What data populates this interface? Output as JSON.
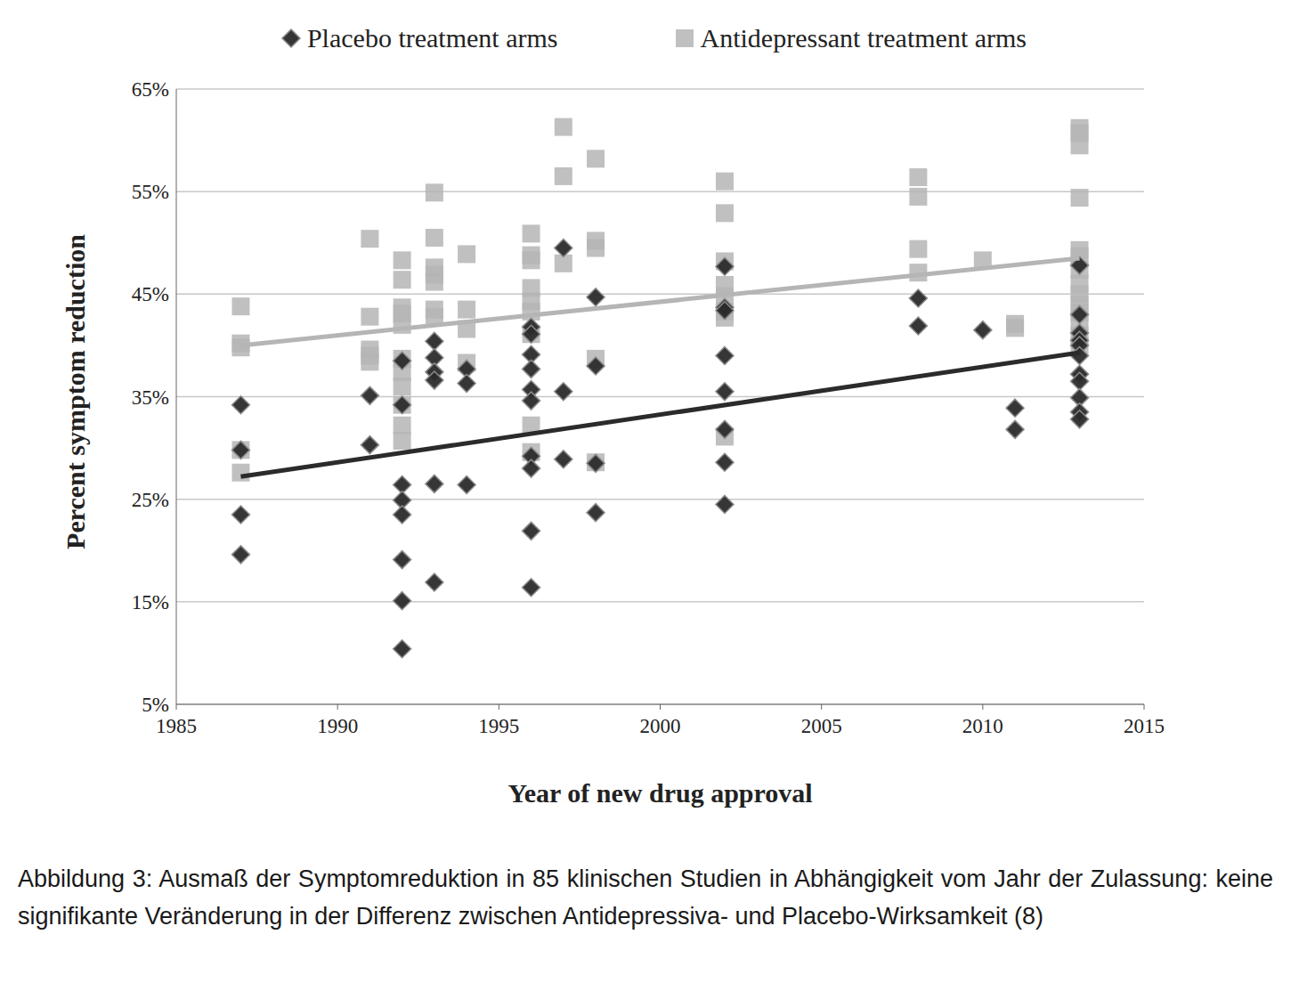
{
  "chart_data": {
    "type": "scatter",
    "x_label": "Year of new drug approval",
    "y_label": "Percent symptom reduction",
    "caption": "Abbildung 3: Ausmaß der Symptomreduktion in 85 klinischen Studien in Abhängigkeit vom Jahr der Zulassung: keine signifikante Veränderung in der Differenz zwischen Antidepressiva- und Placebo-Wirksamkeit (8)",
    "xlim": [
      1985,
      2015
    ],
    "xticks": [
      1985,
      1990,
      1995,
      2000,
      2005,
      2010,
      2015
    ],
    "ylim": [
      5,
      65
    ],
    "yticks": [
      {
        "value": 5,
        "label": "5%"
      },
      {
        "value": 15,
        "label": "15%"
      },
      {
        "value": 25,
        "label": "25%"
      },
      {
        "value": 35,
        "label": "35%"
      },
      {
        "value": 45,
        "label": "45%"
      },
      {
        "value": 55,
        "label": "55%"
      },
      {
        "value": 65,
        "label": "65%"
      }
    ],
    "grid": true,
    "legend": "top",
    "series": [
      {
        "name": "Placebo treatment arms",
        "color": "#2b2b2b",
        "marker": "diamond",
        "x": [
          1987,
          1987,
          1987,
          1987,
          1991,
          1991,
          1992,
          1992,
          1992,
          1992,
          1992,
          1992,
          1992,
          1992,
          1993,
          1993,
          1993,
          1993,
          1993,
          1993,
          1994,
          1994,
          1994,
          1996,
          1996,
          1996,
          1996,
          1996,
          1996,
          1996,
          1996,
          1996,
          1996,
          1997,
          1997,
          1997,
          1998,
          1998,
          1998,
          1998,
          2002,
          2002,
          2002,
          2002,
          2002,
          2002,
          2002,
          2002,
          2008,
          2008,
          2010,
          2011,
          2011,
          2013,
          2013,
          2013,
          2013,
          2013,
          2013,
          2013,
          2013,
          2013,
          2013,
          2013
        ],
        "values": [
          34.2,
          29.8,
          23.5,
          19.6,
          35.1,
          30.3,
          38.5,
          34.2,
          26.4,
          24.9,
          23.5,
          19.1,
          15.1,
          10.4,
          40.4,
          38.8,
          37.4,
          36.6,
          26.5,
          16.9,
          37.7,
          36.3,
          26.4,
          41.8,
          41.1,
          39.1,
          37.7,
          35.7,
          34.6,
          29.2,
          28,
          21.9,
          16.4,
          49.5,
          35.5,
          28.9,
          44.7,
          38,
          28.5,
          23.7,
          47.7,
          43.7,
          43.4,
          39,
          35.5,
          31.8,
          28.6,
          24.5,
          44.6,
          41.9,
          41.5,
          33.9,
          31.8,
          47.8,
          43,
          41.2,
          40.5,
          40,
          39,
          37.2,
          36.5,
          34.9,
          33.5,
          32.8
        ],
        "trend": {
          "x": [
            1987,
            2013
          ],
          "values": [
            27.2,
            39.3
          ]
        }
      },
      {
        "name": "Antidepressant treatment arms",
        "color": "#b5b5b5",
        "marker": "square",
        "x": [
          1987,
          1987,
          1987,
          1987,
          1987,
          1991,
          1991,
          1991,
          1991,
          1991,
          1992,
          1992,
          1992,
          1992,
          1992,
          1992,
          1992,
          1992,
          1992,
          1992,
          1992,
          1993,
          1993,
          1993,
          1993,
          1993,
          1993,
          1993,
          1994,
          1994,
          1994,
          1994,
          1996,
          1996,
          1996,
          1996,
          1996,
          1996,
          1996,
          1996,
          1996,
          1997,
          1997,
          1997,
          1998,
          1998,
          1998,
          1998,
          1998,
          2002,
          2002,
          2002,
          2002,
          2002,
          2002,
          2002,
          2002,
          2008,
          2008,
          2008,
          2008,
          2010,
          2011,
          2011,
          2013,
          2013,
          2013,
          2013,
          2013,
          2013,
          2013,
          2013,
          2013,
          2013,
          2013,
          2013,
          2013,
          2013
        ],
        "values": [
          43.8,
          40.2,
          39.8,
          29.8,
          27.6,
          50.4,
          42.8,
          39.6,
          39,
          38.4,
          48.3,
          46.4,
          43.7,
          43.1,
          42,
          38.7,
          37.4,
          36,
          34.2,
          32.2,
          30.7,
          54.9,
          50.5,
          47.6,
          46.9,
          46.2,
          43.5,
          42.8,
          48.9,
          43.5,
          41.6,
          38.3,
          50.9,
          48.8,
          48.3,
          45.6,
          44.3,
          43.3,
          41.1,
          32.2,
          29.6,
          61.3,
          56.5,
          48,
          58.2,
          50.2,
          49.5,
          38.7,
          28.6,
          56,
          52.9,
          48.2,
          45.9,
          44.8,
          43.3,
          42.7,
          31.1,
          56.4,
          54.5,
          49.4,
          47.1,
          48.3,
          42.1,
          41.7,
          61.2,
          60.7,
          59.5,
          54.4,
          49.3,
          48.7,
          47.4,
          46,
          45,
          44,
          43.2,
          42.3,
          41,
          40
        ],
        "trend": {
          "x": [
            1987,
            2013
          ],
          "values": [
            40,
            48.5
          ]
        }
      }
    ]
  }
}
